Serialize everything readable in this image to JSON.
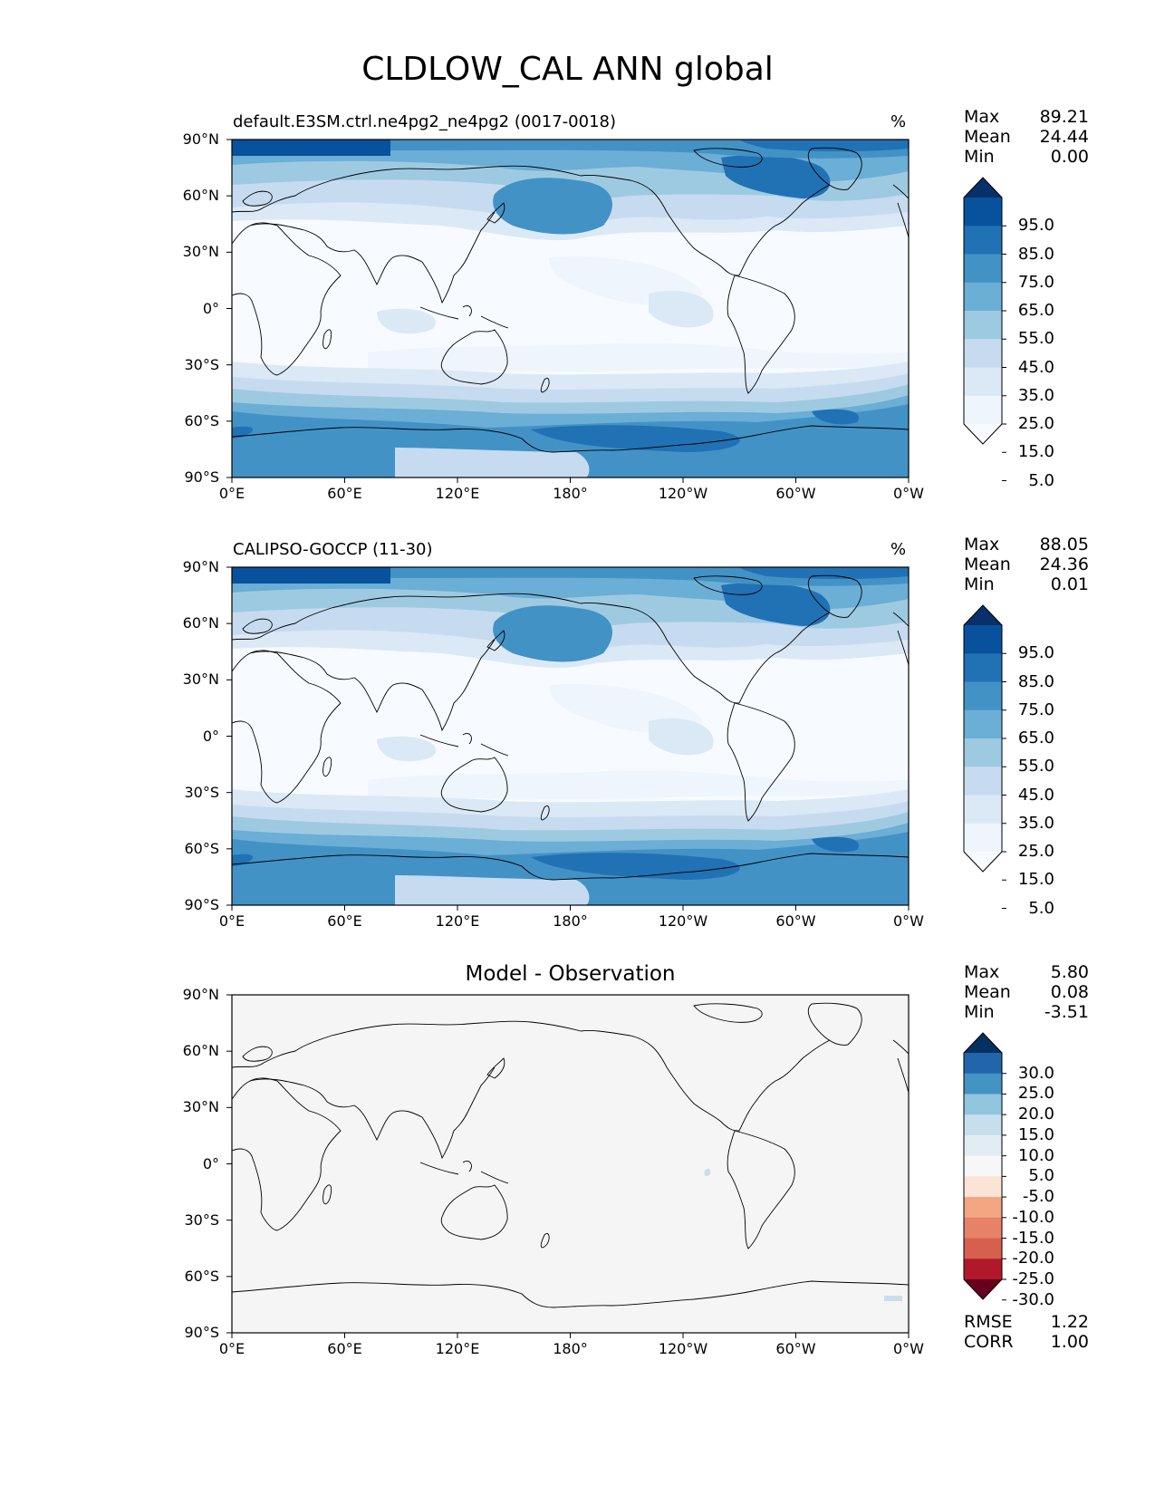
{
  "title": "CLDLOW_CAL ANN global",
  "panels": [
    {
      "id": "test",
      "title_left": "default.E3SM.ctrl.ne4pg2_ne4pg2 (0017-0018)",
      "title_center": "",
      "units": "%",
      "stats": [
        {
          "label": "Max",
          "value": "89.21"
        },
        {
          "label": "Mean",
          "value": "24.44"
        },
        {
          "label": "Min",
          "value": "0.00"
        }
      ],
      "colorbar": {
        "labels": [
          "95.0",
          "85.0",
          "75.0",
          "65.0",
          "55.0",
          "45.0",
          "35.0",
          "25.0",
          "15.0",
          "5.0"
        ],
        "colors": [
          "#08306b",
          "#08519c",
          "#2171b5",
          "#4292c6",
          "#6baed6",
          "#9ecae1",
          "#c6dbef",
          "#dbe9f6",
          "#eef5fc",
          "#f7fbff"
        ]
      },
      "footer_stats": []
    },
    {
      "id": "ref",
      "title_left": "CALIPSO-GOCCP (11-30)",
      "title_center": "",
      "units": "%",
      "stats": [
        {
          "label": "Max",
          "value": "88.05"
        },
        {
          "label": "Mean",
          "value": "24.36"
        },
        {
          "label": "Min",
          "value": "0.01"
        }
      ],
      "colorbar": {
        "labels": [
          "95.0",
          "85.0",
          "75.0",
          "65.0",
          "55.0",
          "45.0",
          "35.0",
          "25.0",
          "15.0",
          "5.0"
        ],
        "colors": [
          "#08306b",
          "#08519c",
          "#2171b5",
          "#4292c6",
          "#6baed6",
          "#9ecae1",
          "#c6dbef",
          "#dbe9f6",
          "#eef5fc",
          "#f7fbff"
        ]
      },
      "footer_stats": []
    },
    {
      "id": "diff",
      "title_left": "",
      "title_center": "Model - Observation",
      "units": "",
      "stats": [
        {
          "label": "Max",
          "value": "5.80"
        },
        {
          "label": "Mean",
          "value": "0.08"
        },
        {
          "label": "Min",
          "value": "-3.51"
        }
      ],
      "colorbar": {
        "labels": [
          "30.0",
          "25.0",
          "20.0",
          "15.0",
          "10.0",
          "5.0",
          "-5.0",
          "-10.0",
          "-15.0",
          "-20.0",
          "-25.0",
          "-30.0"
        ],
        "colors": [
          "#053061",
          "#2166ac",
          "#4393c3",
          "#92c5de",
          "#c7dfed",
          "#e2edf3",
          "#f7f7f7",
          "#fbe3d6",
          "#f4a582",
          "#e58267",
          "#d6604d",
          "#b2182b",
          "#67001f"
        ]
      },
      "footer_stats": [
        {
          "label": "RMSE",
          "value": "1.22"
        },
        {
          "label": "CORR",
          "value": "1.00"
        }
      ]
    }
  ],
  "axes": {
    "lat_ticks": [
      "90°N",
      "60°N",
      "30°N",
      "0°",
      "30°S",
      "60°S",
      "90°S"
    ],
    "lon_ticks": [
      "0°E",
      "60°E",
      "120°E",
      "180°",
      "120°W",
      "60°W",
      "0°W"
    ]
  },
  "colors": {
    "outline": "#000000",
    "diff_background": "#f5f5f5"
  }
}
